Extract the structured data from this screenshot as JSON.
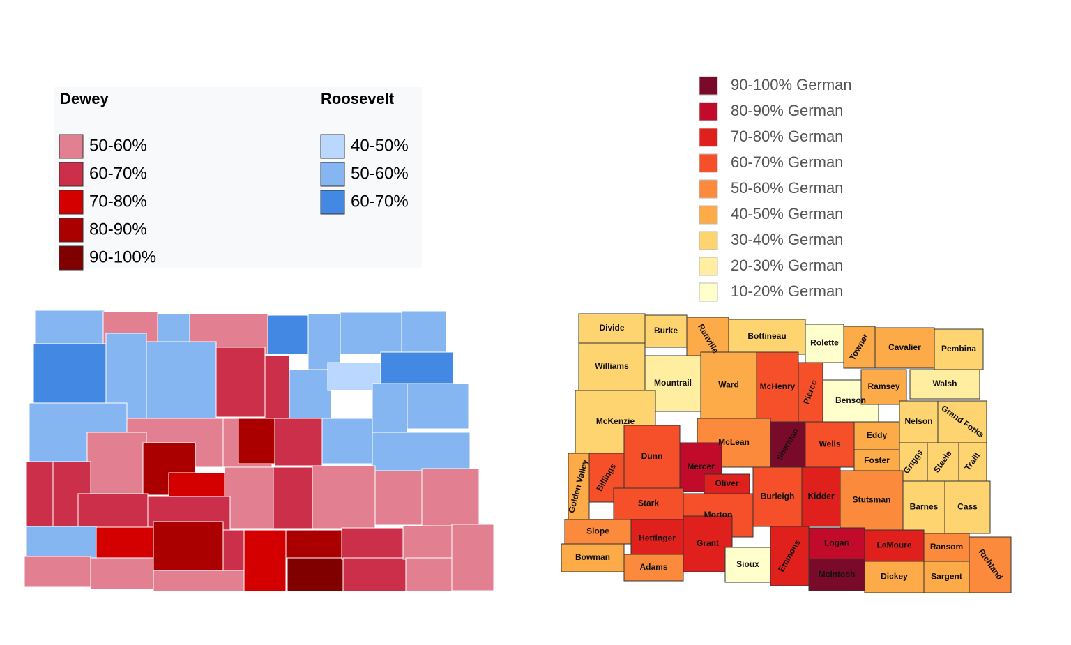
{
  "left_map": {
    "legend": {
      "groups": [
        {
          "title": "Dewey",
          "items": [
            {
              "label": "50-60%",
              "color": "#e27f90"
            },
            {
              "label": "60-70%",
              "color": "#cc2f4a"
            },
            {
              "label": "70-80%",
              "color": "#d40000"
            },
            {
              "label": "80-90%",
              "color": "#aa0000"
            },
            {
              "label": "90-100%",
              "color": "#800000"
            }
          ]
        },
        {
          "title": "Roosevelt",
          "items": [
            {
              "label": "40-50%",
              "color": "#b9d7ff"
            },
            {
              "label": "50-60%",
              "color": "#86b6f2"
            },
            {
              "label": "60-70%",
              "color": "#4389e3"
            }
          ]
        }
      ]
    }
  },
  "right_map": {
    "legend": {
      "items": [
        {
          "label": "90-100% German",
          "color": "#7a0a2a"
        },
        {
          "label": "80-90% German",
          "color": "#c20a2a"
        },
        {
          "label": "70-80% German",
          "color": "#e0201c"
        },
        {
          "label": "60-70% German",
          "color": "#f5502a"
        },
        {
          "label": "50-60% German",
          "color": "#fb8a3c"
        },
        {
          "label": "40-50% German",
          "color": "#fdaa48"
        },
        {
          "label": "30-40% German",
          "color": "#fed470"
        },
        {
          "label": "20-30% German",
          "color": "#ffeda0"
        },
        {
          "label": "10-20% German",
          "color": "#ffffcc"
        }
      ]
    },
    "counties": [
      "Divide",
      "Burke",
      "Renville",
      "Bottineau",
      "Rolette",
      "Towner",
      "Cavalier",
      "Pembina",
      "Williams",
      "Mountrail",
      "Ward",
      "McHenry",
      "Pierce",
      "Benson",
      "Ramsey",
      "Walsh",
      "McKenzie",
      "McLean",
      "Sheridan",
      "Wells",
      "Eddy",
      "Foster",
      "Nelson",
      "Grand Forks",
      "Griggs",
      "Steele",
      "Traill",
      "Golden Valley",
      "Billings",
      "Dunn",
      "Mercer",
      "Oliver",
      "Stark",
      "Morton",
      "Burleigh",
      "Kidder",
      "Stutsman",
      "Barnes",
      "Cass",
      "Slope",
      "Hettinger",
      "Grant",
      "Emmons",
      "Logan",
      "LaMoure",
      "Ransom",
      "Richland",
      "Bowman",
      "Adams",
      "Sioux",
      "McIntosh",
      "Dickey",
      "Sargent"
    ]
  }
}
